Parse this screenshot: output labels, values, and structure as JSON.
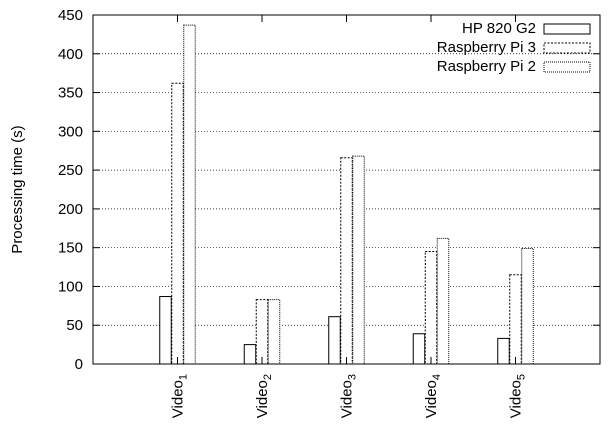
{
  "chart_data": {
    "type": "bar",
    "title": "",
    "xlabel": "",
    "ylabel": "Processing time (s)",
    "ylim": [
      0,
      450
    ],
    "yticks": [
      0,
      50,
      100,
      150,
      200,
      250,
      300,
      350,
      400,
      450
    ],
    "grid": true,
    "legend_position": "top-right",
    "categories": [
      {
        "base": "Video",
        "sub": "1"
      },
      {
        "base": "Video",
        "sub": "2"
      },
      {
        "base": "Video",
        "sub": "3"
      },
      {
        "base": "Video",
        "sub": "4"
      },
      {
        "base": "Video",
        "sub": "5"
      }
    ],
    "series": [
      {
        "name": "HP 820 G2",
        "style": "solid",
        "values": [
          87,
          25,
          61,
          39,
          33
        ]
      },
      {
        "name": "Raspberry Pi 3",
        "style": "dashed",
        "values": [
          362,
          83,
          266,
          145,
          115
        ]
      },
      {
        "name": "Raspberry Pi 2",
        "style": "dotted",
        "values": [
          437,
          83,
          268,
          162,
          149
        ]
      }
    ]
  }
}
